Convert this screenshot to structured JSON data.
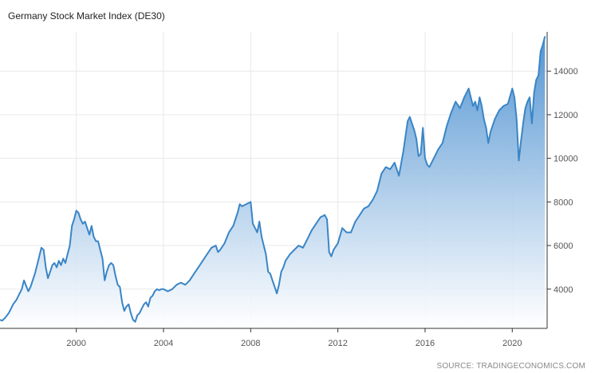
{
  "chart_data": {
    "type": "area",
    "title": "Germany Stock Market Index (DE30)",
    "source": "SOURCE: TRADINGECONOMICS.COM",
    "xlabel": "",
    "ylabel": "",
    "xlim": [
      1996.5,
      2021.6
    ],
    "ylim": [
      2200,
      15800
    ],
    "x_ticks": [
      2000,
      2004,
      2008,
      2012,
      2016,
      2020
    ],
    "y_ticks": [
      4000,
      6000,
      8000,
      10000,
      12000,
      14000
    ],
    "y_axis_position": "right",
    "grid": true,
    "legend": "none",
    "colors": {
      "line": "#3a85c6",
      "fill_top": "#4a8fd0",
      "fill_bottom": "#ffffff",
      "grid": "#e8e8e8",
      "axis": "#333333"
    },
    "series": [
      {
        "x": [
          1996.5,
          1996.6,
          1996.75,
          1996.9,
          1997.0,
          1997.1,
          1997.25,
          1997.4,
          1997.5,
          1997.55,
          1997.6,
          1997.7,
          1997.8,
          1997.9,
          1998.0,
          1998.1,
          1998.2,
          1998.3,
          1998.4,
          1998.5,
          1998.6,
          1998.7,
          1998.8,
          1998.9,
          1999.0,
          1999.1,
          1999.2,
          1999.3,
          1999.4,
          1999.5,
          1999.6,
          1999.7,
          1999.8,
          1999.9,
          2000.0,
          2000.1,
          2000.2,
          2000.3,
          2000.4,
          2000.5,
          2000.6,
          2000.7,
          2000.8,
          2000.9,
          2001.0,
          2001.1,
          2001.2,
          2001.3,
          2001.4,
          2001.5,
          2001.6,
          2001.7,
          2001.8,
          2001.9,
          2002.0,
          2002.1,
          2002.2,
          2002.3,
          2002.4,
          2002.5,
          2002.6,
          2002.7,
          2002.8,
          2002.9,
          2003.0,
          2003.1,
          2003.2,
          2003.3,
          2003.4,
          2003.5,
          2003.6,
          2003.7,
          2003.8,
          2003.9,
          2004.0,
          2004.2,
          2004.4,
          2004.6,
          2004.8,
          2005.0,
          2005.2,
          2005.4,
          2005.6,
          2005.8,
          2006.0,
          2006.2,
          2006.4,
          2006.5,
          2006.6,
          2006.8,
          2007.0,
          2007.2,
          2007.4,
          2007.5,
          2007.6,
          2007.8,
          2008.0,
          2008.1,
          2008.2,
          2008.3,
          2008.4,
          2008.5,
          2008.6,
          2008.7,
          2008.8,
          2008.9,
          2009.0,
          2009.1,
          2009.2,
          2009.3,
          2009.4,
          2009.5,
          2009.6,
          2009.8,
          2010.0,
          2010.2,
          2010.4,
          2010.6,
          2010.8,
          2011.0,
          2011.2,
          2011.4,
          2011.5,
          2011.55,
          2011.6,
          2011.7,
          2011.8,
          2012.0,
          2012.2,
          2012.4,
          2012.6,
          2012.8,
          2013.0,
          2013.2,
          2013.4,
          2013.6,
          2013.8,
          2014.0,
          2014.2,
          2014.4,
          2014.6,
          2014.8,
          2015.0,
          2015.2,
          2015.3,
          2015.4,
          2015.5,
          2015.6,
          2015.7,
          2015.8,
          2015.9,
          2016.0,
          2016.1,
          2016.2,
          2016.4,
          2016.6,
          2016.8,
          2017.0,
          2017.2,
          2017.4,
          2017.6,
          2017.8,
          2018.0,
          2018.1,
          2018.2,
          2018.3,
          2018.4,
          2018.5,
          2018.6,
          2018.7,
          2018.8,
          2018.9,
          2019.0,
          2019.2,
          2019.4,
          2019.6,
          2019.8,
          2020.0,
          2020.1,
          2020.2,
          2020.3,
          2020.4,
          2020.5,
          2020.6,
          2020.7,
          2020.8,
          2020.9,
          2021.0,
          2021.1,
          2021.2,
          2021.3,
          2021.4,
          2021.5
        ],
        "y": [
          2600,
          2550,
          2700,
          2900,
          3100,
          3300,
          3500,
          3800,
          4000,
          4200,
          4400,
          4150,
          3900,
          4100,
          4400,
          4700,
          5100,
          5500,
          5900,
          5800,
          5000,
          4500,
          4800,
          5100,
          5200,
          5000,
          5300,
          5100,
          5400,
          5200,
          5600,
          6000,
          6900,
          7200,
          7600,
          7500,
          7200,
          7000,
          7100,
          6800,
          6500,
          6900,
          6400,
          6200,
          6200,
          5800,
          5400,
          4400,
          4800,
          5100,
          5200,
          5100,
          4600,
          4200,
          4100,
          3400,
          3000,
          3200,
          3300,
          2900,
          2600,
          2500,
          2800,
          2900,
          3100,
          3300,
          3400,
          3200,
          3600,
          3700,
          3900,
          4000,
          3950,
          4000,
          4000,
          3900,
          4000,
          4200,
          4300,
          4200,
          4400,
          4700,
          5000,
          5300,
          5600,
          5900,
          6000,
          5700,
          5800,
          6100,
          6600,
          6900,
          7500,
          7900,
          7800,
          7900,
          8000,
          7000,
          6800,
          6600,
          7100,
          6400,
          6000,
          5600,
          4800,
          4700,
          4400,
          4100,
          3800,
          4200,
          4800,
          5000,
          5300,
          5600,
          5800,
          6000,
          5900,
          6300,
          6700,
          7000,
          7300,
          7400,
          7200,
          6500,
          5700,
          5500,
          5800,
          6100,
          6800,
          6600,
          6600,
          7100,
          7400,
          7700,
          7800,
          8100,
          8500,
          9300,
          9600,
          9500,
          9800,
          9200,
          10300,
          11700,
          11900,
          11600,
          11300,
          10900,
          10100,
          10200,
          11400,
          10000,
          9700,
          9600,
          10000,
          10400,
          10700,
          11500,
          12100,
          12600,
          12300,
          12800,
          13200,
          12800,
          12400,
          12600,
          12200,
          12800,
          12400,
          11800,
          11400,
          10700,
          11200,
          11800,
          12200,
          12400,
          12500,
          13200,
          12800,
          11800,
          9900,
          10800,
          11600,
          12300,
          12600,
          12800,
          11600,
          13000,
          13600,
          13800,
          14900,
          15200,
          15600
        ]
      }
    ]
  }
}
